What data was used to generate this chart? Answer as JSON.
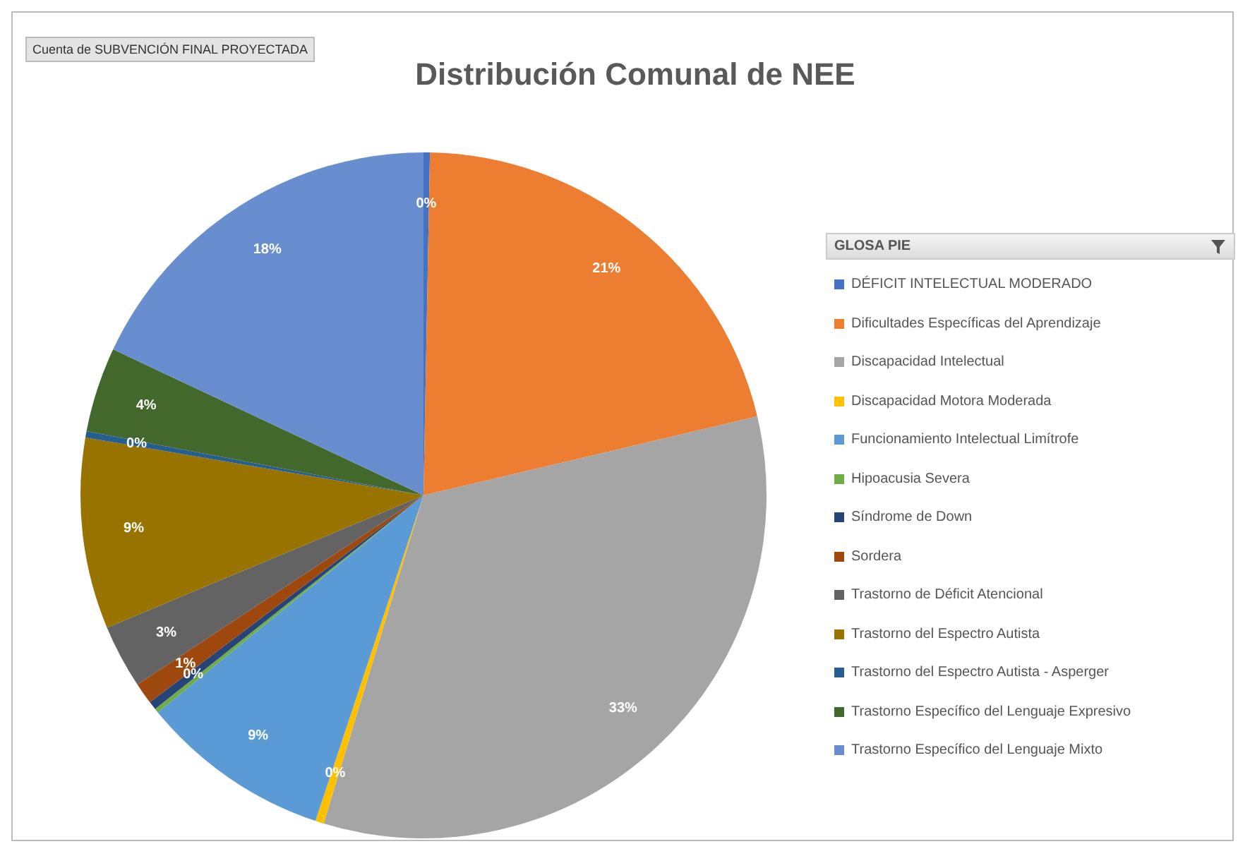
{
  "chart_data": {
    "type": "pie",
    "title": "Distribución Comunal de NEE",
    "legend_title": "GLOSA PIE",
    "legend": "right",
    "annotations": [
      "Cuenta de SUBVENCIÓN FINAL PROYECTADA"
    ],
    "categories": [
      "DÉFICIT INTELECTUAL MODERADO",
      "Dificultades Específicas del Aprendizaje",
      "Discapacidad Intelectual",
      "Discapacidad Motora Moderada",
      "Funcionamiento Intelectual Limítrofe",
      "Hipoacusia Severa",
      "Síndrome de Down",
      "Sordera",
      "Trastorno de Déficit Atencional",
      "Trastorno del Espectro Autista",
      "Trastorno del Espectro Autista - Asperger",
      "Trastorno Específico del Lenguaje Expresivo",
      "Trastorno Específico del Lenguaje Mixto"
    ],
    "values": [
      0.3,
      21,
      33.4,
      0.4,
      9,
      0.2,
      0.4,
      1,
      3,
      9,
      0.3,
      4,
      18
    ],
    "value_labels": [
      "0%",
      "21%",
      "33%",
      "0%",
      "9%",
      null,
      "0%",
      "1%",
      "3%",
      "9%",
      "0%",
      "4%",
      "18%"
    ],
    "colors": [
      "#4472c4",
      "#ed7d31",
      "#a5a5a5",
      "#ffc000",
      "#5b9bd5",
      "#70ad47",
      "#264478",
      "#9e480e",
      "#636363",
      "#997300",
      "#255e91",
      "#43682b",
      "#698ed0"
    ]
  }
}
